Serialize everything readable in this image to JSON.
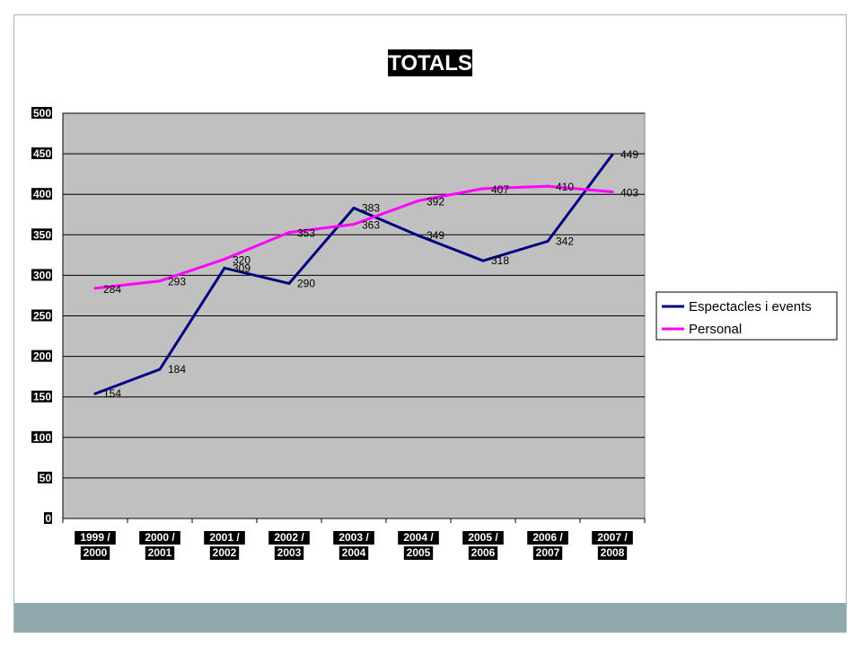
{
  "chart_data": {
    "type": "line",
    "title": "TOTALS",
    "xlabel": "",
    "ylabel": "",
    "categories": [
      [
        "1999 /",
        "2000"
      ],
      [
        "2000 /",
        "2001"
      ],
      [
        "2001 /",
        "2002"
      ],
      [
        "2002 /",
        "2003"
      ],
      [
        "2003 /",
        "2004"
      ],
      [
        "2004 /",
        "2005"
      ],
      [
        "2005 /",
        "2006"
      ],
      [
        "2006 /",
        "2007"
      ],
      [
        "2007 /",
        "2008"
      ]
    ],
    "ylim": [
      0,
      500
    ],
    "yticks": [
      0,
      50,
      100,
      150,
      200,
      250,
      300,
      350,
      400,
      450,
      500
    ],
    "grid": true,
    "legend_position": "right",
    "plot_background": "#c0c0c0",
    "series": [
      {
        "name": "Espectacles i events",
        "color": "#000080",
        "values": [
          154,
          184,
          309,
          290,
          383,
          349,
          318,
          342,
          449
        ]
      },
      {
        "name": "Personal",
        "color": "#ff00ff",
        "values": [
          284,
          293,
          320,
          353,
          363,
          392,
          407,
          410,
          403
        ]
      }
    ]
  }
}
